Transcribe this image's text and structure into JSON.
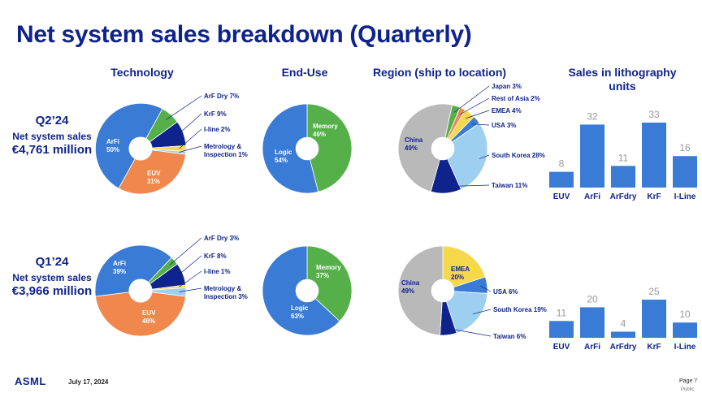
{
  "title": "Net system sales breakdown (Quarterly)",
  "headers": {
    "technology": "Technology",
    "enduse": "End-Use",
    "region": "Region (ship to location)",
    "litho_line1": "Sales in lithography",
    "litho_line2": "units"
  },
  "quarters": [
    {
      "label": "Q2’24",
      "net_label": "Net system sales",
      "amount": "€4,761 million"
    },
    {
      "label": "Q1’24",
      "net_label": "Net system sales",
      "amount": "€3,966 million"
    }
  ],
  "footer": {
    "logo": "ASML",
    "date": "July 17, 2024",
    "page": "Page 7",
    "public": "Public"
  },
  "colors": {
    "title": "#0f238c",
    "arfi": "#3a7bd5",
    "euv": "#f0884e",
    "arf_dry": "#55b04a",
    "krf": "#0f238c",
    "iline": "#f5d94b",
    "metrology": "#9dd0f0",
    "memory": "#55b04a",
    "logic": "#3a7bd5",
    "china": "#b9b9b9",
    "japan": "#55b04a",
    "rest_of_asia": "#f0884e",
    "emea": "#f5d94b",
    "usa": "#3a7bd5",
    "south_korea": "#9dd0f0",
    "taiwan": "#0f238c",
    "bar": "#3a7bd5"
  },
  "chart_data": [
    {
      "type": "pie",
      "id": "tech_q2",
      "title": "Technology",
      "quarter": "Q2’24",
      "slices": [
        {
          "key": "arfi",
          "name": "ArFi",
          "value": 50,
          "label": "50%"
        },
        {
          "key": "euv",
          "name": "EUV",
          "value": 31,
          "label": "31%"
        },
        {
          "key": "metrology",
          "name": "Metrology & Inspection",
          "value": 1,
          "label": "1%"
        },
        {
          "key": "iline",
          "name": "I-line",
          "value": 2,
          "label": "2%"
        },
        {
          "key": "krf",
          "name": "KrF",
          "value": 9,
          "label": "9%"
        },
        {
          "key": "arf_dry",
          "name": "ArF Dry",
          "value": 7,
          "label": "7%"
        }
      ]
    },
    {
      "type": "pie",
      "id": "enduse_q2",
      "title": "End-Use",
      "quarter": "Q2’24",
      "slices": [
        {
          "key": "logic",
          "name": "Logic",
          "value": 54,
          "label": "54%"
        },
        {
          "key": "memory",
          "name": "Memory",
          "value": 46,
          "label": "46%"
        }
      ]
    },
    {
      "type": "pie",
      "id": "region_q2",
      "title": "Region (ship to location)",
      "quarter": "Q2’24",
      "slices": [
        {
          "key": "china",
          "name": "China",
          "value": 49,
          "label": "49%"
        },
        {
          "key": "japan",
          "name": "Japan",
          "value": 3,
          "label": "3%"
        },
        {
          "key": "rest_of_asia",
          "name": "Rest of Asia",
          "value": 2,
          "label": "2%"
        },
        {
          "key": "emea",
          "name": "EMEA",
          "value": 4,
          "label": "4%"
        },
        {
          "key": "usa",
          "name": "USA",
          "value": 3,
          "label": "3%"
        },
        {
          "key": "south_korea",
          "name": "South Korea",
          "value": 28,
          "label": "28%"
        },
        {
          "key": "taiwan",
          "name": "Taiwan",
          "value": 11,
          "label": "11%"
        }
      ]
    },
    {
      "type": "bar",
      "id": "litho_q2",
      "title": "Sales in lithography units",
      "quarter": "Q2’24",
      "categories": [
        "EUV",
        "ArFi",
        "ArFdry",
        "KrF",
        "I-Line"
      ],
      "values": [
        8,
        32,
        11,
        33,
        16
      ]
    },
    {
      "type": "pie",
      "id": "tech_q1",
      "title": "Technology",
      "quarter": "Q1’24",
      "slices": [
        {
          "key": "arfi",
          "name": "ArFi",
          "value": 39,
          "label": "39%"
        },
        {
          "key": "euv",
          "name": "EUV",
          "value": 46,
          "label": "46%"
        },
        {
          "key": "metrology",
          "name": "Metrology & Inspection",
          "value": 3,
          "label": "3%"
        },
        {
          "key": "iline",
          "name": "I-line",
          "value": 1,
          "label": "1%"
        },
        {
          "key": "krf",
          "name": "KrF",
          "value": 8,
          "label": "8%"
        },
        {
          "key": "arf_dry",
          "name": "ArF Dry",
          "value": 3,
          "label": "3%"
        }
      ]
    },
    {
      "type": "pie",
      "id": "enduse_q1",
      "title": "End-Use",
      "quarter": "Q1’24",
      "slices": [
        {
          "key": "logic",
          "name": "Logic",
          "value": 63,
          "label": "63%"
        },
        {
          "key": "memory",
          "name": "Memory",
          "value": 37,
          "label": "37%"
        }
      ]
    },
    {
      "type": "pie",
      "id": "region_q1",
      "title": "Region (ship to location)",
      "quarter": "Q1’24",
      "slices": [
        {
          "key": "china",
          "name": "China",
          "value": 49,
          "label": "49%"
        },
        {
          "key": "emea",
          "name": "EMEA",
          "value": 20,
          "label": "20%"
        },
        {
          "key": "usa",
          "name": "USA",
          "value": 6,
          "label": "6%"
        },
        {
          "key": "south_korea",
          "name": "South Korea",
          "value": 19,
          "label": "19%"
        },
        {
          "key": "taiwan",
          "name": "Taiwan",
          "value": 6,
          "label": "6%"
        }
      ]
    },
    {
      "type": "bar",
      "id": "litho_q1",
      "title": "Sales in lithography units",
      "quarter": "Q1’24",
      "categories": [
        "EUV",
        "ArFi",
        "ArFdry",
        "KrF",
        "I-Line"
      ],
      "values": [
        11,
        20,
        4,
        25,
        10
      ]
    }
  ]
}
